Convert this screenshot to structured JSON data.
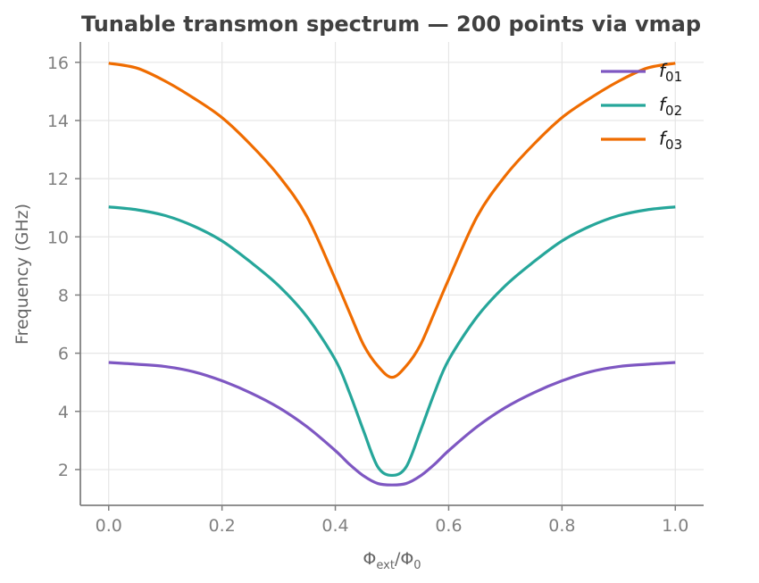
{
  "chart_data": {
    "type": "line",
    "title": "Tunable transmon spectrum — 200 points via vmap",
    "xlabel": "Φext/Φ0",
    "xlabel_main": "Φ",
    "xlabel_sub1": "ext",
    "xlabel_mid": "/Φ",
    "xlabel_sub2": "0",
    "ylabel": "Frequency (GHz)",
    "xlim": [
      -0.05,
      1.05
    ],
    "ylim": [
      0.77,
      16.7
    ],
    "grid": true,
    "legend_position": "top-right",
    "xticks": [
      "0.0",
      "0.2",
      "0.4",
      "0.6",
      "0.8",
      "1.0"
    ],
    "xtick_values": [
      0,
      0.2,
      0.4,
      0.6,
      0.8,
      1.0
    ],
    "yticks": [
      "2",
      "4",
      "6",
      "8",
      "10",
      "12",
      "14",
      "16"
    ],
    "ytick_values": [
      2,
      4,
      6,
      8,
      10,
      12,
      14,
      16
    ],
    "x": [
      0,
      0.05,
      0.1,
      0.15,
      0.2,
      0.25,
      0.3,
      0.35,
      0.4,
      0.425,
      0.45,
      0.475,
      0.5,
      0.525,
      0.55,
      0.575,
      0.6,
      0.65,
      0.7,
      0.75,
      0.8,
      0.85,
      0.9,
      0.95,
      1.0
    ],
    "series": [
      {
        "name": "f01",
        "base": "f",
        "sub": "01",
        "color": "#7E57C2",
        "values": [
          5.68,
          5.62,
          5.54,
          5.36,
          5.05,
          4.64,
          4.13,
          3.47,
          2.65,
          2.18,
          1.78,
          1.52,
          1.47,
          1.52,
          1.78,
          2.18,
          2.65,
          3.47,
          4.13,
          4.64,
          5.05,
          5.36,
          5.54,
          5.62,
          5.68
        ]
      },
      {
        "name": "f02",
        "base": "f",
        "sub": "02",
        "color": "#26A69A",
        "values": [
          11.03,
          10.93,
          10.73,
          10.37,
          9.86,
          9.14,
          8.32,
          7.25,
          5.77,
          4.64,
          3.32,
          2.09,
          1.8,
          2.09,
          3.32,
          4.64,
          5.77,
          7.25,
          8.32,
          9.14,
          9.86,
          10.37,
          10.73,
          10.93,
          11.03
        ]
      },
      {
        "name": "f03",
        "base": "f",
        "sub": "03",
        "color": "#EF6C00",
        "values": [
          15.97,
          15.8,
          15.35,
          14.77,
          14.1,
          13.18,
          12.1,
          10.69,
          8.54,
          7.4,
          6.28,
          5.56,
          5.17,
          5.56,
          6.28,
          7.4,
          8.54,
          10.69,
          12.1,
          13.18,
          14.1,
          14.77,
          15.35,
          15.8,
          15.97
        ]
      }
    ]
  }
}
